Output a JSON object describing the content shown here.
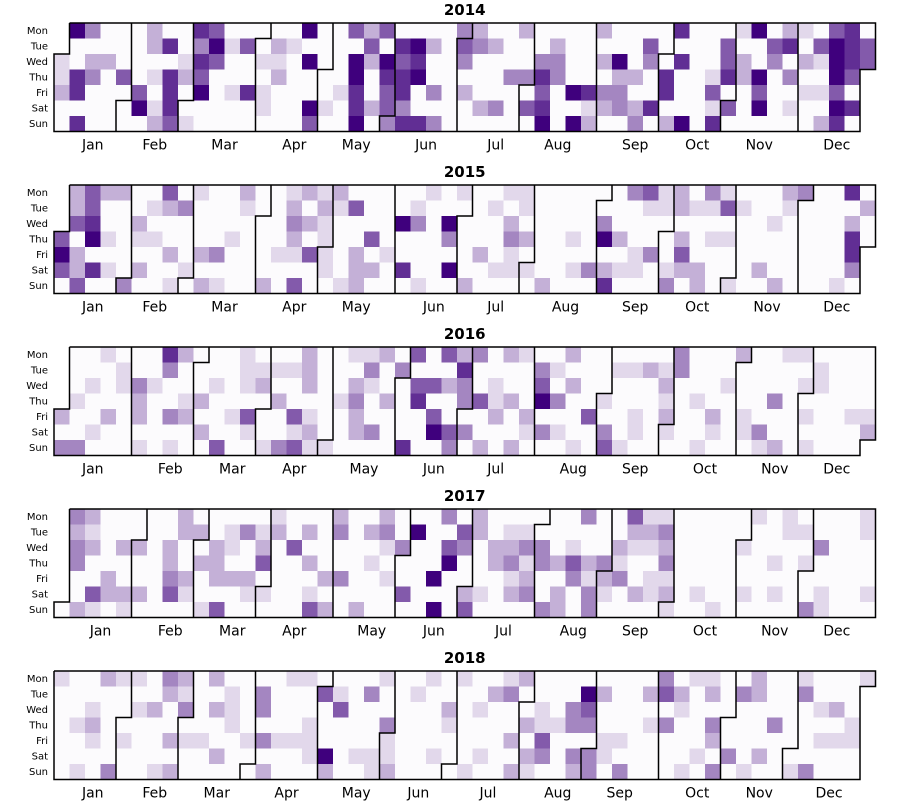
{
  "chart_data": {
    "type": "heatmap",
    "title": "",
    "colormap": {
      "low": "#fcfbfd",
      "high": "#3f007d"
    },
    "day_labels": [
      "Mon",
      "Tue",
      "Wed",
      "Thu",
      "Fri",
      "Sat",
      "Sun"
    ],
    "month_labels": [
      "Jan",
      "Feb",
      "Mar",
      "Apr",
      "May",
      "Jun",
      "Jul",
      "Aug",
      "Sep",
      "Oct",
      "Nov",
      "Dec"
    ],
    "years": [
      {
        "year": "2014",
        "first_weekday": 2,
        "days_in_year": 365
      },
      {
        "year": "2015",
        "first_weekday": 3,
        "days_in_year": 365
      },
      {
        "year": "2016",
        "first_weekday": 4,
        "days_in_year": 366
      },
      {
        "year": "2017",
        "first_weekday": 6,
        "days_in_year": 365
      },
      {
        "year": "2018",
        "first_weekday": 0,
        "days_in_year": 365
      }
    ],
    "value_scale": [
      0,
      6
    ],
    "highlights": {
      "2014": [
        [
          0,
          2
        ],
        [
          1,
          6
        ],
        [
          2,
          5
        ],
        [
          2,
          4
        ],
        [
          3,
          6
        ],
        [
          3,
          1
        ],
        [
          4,
          2
        ],
        [
          4,
          5
        ],
        [
          5,
          3
        ],
        [
          5,
          6
        ],
        [
          6,
          1
        ],
        [
          6,
          2
        ],
        [
          7,
          4
        ],
        [
          7,
          6
        ],
        [
          8,
          2
        ],
        [
          8,
          1
        ],
        [
          9,
          5
        ],
        [
          10,
          6
        ],
        [
          11,
          1
        ],
        [
          12,
          6
        ],
        [
          13,
          1
        ],
        [
          13,
          3
        ],
        [
          14,
          3
        ],
        [
          15,
          2
        ],
        [
          16,
          1
        ],
        [
          16,
          6
        ],
        [
          17,
          2
        ],
        [
          18,
          6
        ],
        [
          18,
          1
        ],
        [
          19,
          6
        ],
        [
          20,
          2
        ],
        [
          21,
          3
        ],
        [
          21,
          5
        ],
        [
          22,
          5
        ],
        [
          23,
          4
        ],
        [
          23,
          6
        ],
        [
          24,
          3
        ],
        [
          25,
          1
        ],
        [
          26,
          6
        ],
        [
          26,
          4
        ],
        [
          27,
          3
        ],
        [
          28,
          2
        ],
        [
          29,
          6
        ],
        [
          29,
          1
        ],
        [
          30,
          2
        ],
        [
          31,
          5
        ],
        [
          32,
          6
        ],
        [
          32,
          4
        ],
        [
          33,
          6
        ],
        [
          34,
          3
        ],
        [
          35,
          2
        ],
        [
          36,
          4
        ],
        [
          37,
          3
        ],
        [
          38,
          5
        ],
        [
          39,
          4
        ],
        [
          40,
          6
        ],
        [
          41,
          1
        ],
        [
          42,
          3
        ],
        [
          43,
          5
        ],
        [
          44,
          2
        ],
        [
          45,
          6
        ],
        [
          46,
          4
        ],
        [
          47,
          3
        ],
        [
          48,
          1
        ],
        [
          49,
          2
        ],
        [
          50,
          5
        ],
        [
          51,
          6
        ],
        [
          52,
          4
        ]
      ],
      "2015": [
        [
          0,
          6
        ],
        [
          0,
          5
        ],
        [
          1,
          6
        ],
        [
          1,
          3
        ],
        [
          2,
          5
        ],
        [
          3,
          1
        ],
        [
          4,
          2
        ],
        [
          5,
          2
        ],
        [
          7,
          2
        ],
        [
          8,
          3
        ],
        [
          9,
          2
        ],
        [
          10,
          1
        ],
        [
          11,
          1
        ],
        [
          13,
          2
        ],
        [
          14,
          1
        ],
        [
          15,
          3
        ],
        [
          16,
          2
        ],
        [
          17,
          2
        ],
        [
          18,
          2
        ],
        [
          19,
          2
        ],
        [
          20,
          3
        ],
        [
          21,
          2
        ],
        [
          22,
          1
        ],
        [
          22,
          5
        ],
        [
          23,
          2
        ],
        [
          24,
          1
        ],
        [
          25,
          4
        ],
        [
          26,
          1
        ],
        [
          28,
          1
        ],
        [
          30,
          1
        ],
        [
          31,
          1
        ],
        [
          32,
          2
        ],
        [
          33,
          1
        ],
        [
          35,
          4
        ],
        [
          36,
          2
        ],
        [
          37,
          3
        ],
        [
          38,
          2
        ],
        [
          39,
          1
        ],
        [
          40,
          2
        ],
        [
          41,
          2
        ],
        [
          42,
          1
        ],
        [
          43,
          2
        ],
        [
          44,
          1
        ],
        [
          45,
          2
        ],
        [
          46,
          1
        ],
        [
          47,
          2
        ],
        [
          48,
          1
        ],
        [
          49,
          5
        ],
        [
          50,
          1
        ],
        [
          51,
          4
        ],
        [
          52,
          3
        ]
      ],
      "2016": [
        [
          0,
          3
        ],
        [
          1,
          2
        ],
        [
          2,
          1
        ],
        [
          3,
          1
        ],
        [
          4,
          2
        ],
        [
          5,
          2
        ],
        [
          6,
          1
        ],
        [
          7,
          3
        ],
        [
          8,
          2
        ],
        [
          9,
          3
        ],
        [
          10,
          2
        ],
        [
          11,
          1
        ],
        [
          12,
          2
        ],
        [
          13,
          2
        ],
        [
          14,
          1
        ],
        [
          15,
          2
        ],
        [
          16,
          2
        ],
        [
          17,
          1
        ],
        [
          18,
          2
        ],
        [
          19,
          2
        ],
        [
          20,
          3
        ],
        [
          21,
          2
        ],
        [
          22,
          5
        ],
        [
          23,
          6
        ],
        [
          24,
          5
        ],
        [
          25,
          4
        ],
        [
          26,
          3
        ],
        [
          27,
          3
        ],
        [
          28,
          2
        ],
        [
          29,
          2
        ],
        [
          30,
          3
        ],
        [
          31,
          4
        ],
        [
          32,
          3
        ],
        [
          33,
          2
        ],
        [
          34,
          2
        ],
        [
          35,
          3
        ],
        [
          36,
          2
        ],
        [
          37,
          2
        ],
        [
          38,
          2
        ],
        [
          39,
          2
        ],
        [
          40,
          1
        ],
        [
          41,
          1
        ],
        [
          42,
          1
        ],
        [
          43,
          1
        ],
        [
          44,
          1
        ],
        [
          45,
          1
        ],
        [
          46,
          1
        ],
        [
          47,
          1
        ],
        [
          48,
          1
        ],
        [
          49,
          1
        ],
        [
          50,
          1
        ],
        [
          51,
          1
        ],
        [
          52,
          1
        ]
      ],
      "2017": [
        [
          0,
          2
        ],
        [
          1,
          3
        ],
        [
          2,
          2
        ],
        [
          3,
          1
        ],
        [
          4,
          2
        ],
        [
          5,
          2
        ],
        [
          6,
          2
        ],
        [
          7,
          4
        ],
        [
          8,
          2
        ],
        [
          9,
          2
        ],
        [
          10,
          2
        ],
        [
          11,
          2
        ],
        [
          12,
          2
        ],
        [
          13,
          2
        ],
        [
          14,
          3
        ],
        [
          15,
          2
        ],
        [
          16,
          2
        ],
        [
          17,
          2
        ],
        [
          18,
          3
        ],
        [
          19,
          2
        ],
        [
          20,
          2
        ],
        [
          21,
          2
        ],
        [
          22,
          4
        ],
        [
          23,
          6
        ],
        [
          24,
          6
        ],
        [
          25,
          5
        ],
        [
          26,
          4
        ],
        [
          27,
          3
        ],
        [
          28,
          2
        ],
        [
          29,
          3
        ],
        [
          30,
          2
        ],
        [
          31,
          3
        ],
        [
          32,
          2
        ],
        [
          33,
          3
        ],
        [
          34,
          3
        ],
        [
          35,
          2
        ],
        [
          36,
          2
        ],
        [
          37,
          2
        ],
        [
          38,
          2
        ],
        [
          39,
          2
        ],
        [
          40,
          1
        ],
        [
          41,
          1
        ],
        [
          42,
          2
        ],
        [
          43,
          1
        ],
        [
          44,
          1
        ],
        [
          45,
          1
        ],
        [
          46,
          1
        ],
        [
          47,
          1
        ],
        [
          48,
          1
        ],
        [
          49,
          1
        ],
        [
          50,
          1
        ],
        [
          51,
          1
        ],
        [
          52,
          1
        ]
      ],
      "2018": [
        [
          0,
          1
        ],
        [
          1,
          1
        ],
        [
          2,
          1
        ],
        [
          3,
          1
        ],
        [
          4,
          1
        ],
        [
          5,
          2
        ],
        [
          6,
          1
        ],
        [
          7,
          2
        ],
        [
          8,
          3
        ],
        [
          9,
          1
        ],
        [
          10,
          2
        ],
        [
          11,
          1
        ],
        [
          12,
          1
        ],
        [
          13,
          3
        ],
        [
          14,
          1
        ],
        [
          15,
          1
        ],
        [
          16,
          1
        ],
        [
          17,
          4
        ],
        [
          18,
          2
        ],
        [
          19,
          2
        ],
        [
          20,
          1
        ],
        [
          21,
          1
        ],
        [
          22,
          1
        ],
        [
          23,
          1
        ],
        [
          24,
          1
        ],
        [
          25,
          1
        ],
        [
          26,
          1
        ],
        [
          27,
          1
        ],
        [
          28,
          1
        ],
        [
          29,
          2
        ],
        [
          30,
          2
        ],
        [
          31,
          2
        ],
        [
          32,
          2
        ],
        [
          33,
          3
        ],
        [
          34,
          4
        ],
        [
          35,
          2
        ],
        [
          36,
          1
        ],
        [
          37,
          1
        ],
        [
          38,
          2
        ],
        [
          39,
          3
        ],
        [
          40,
          2
        ],
        [
          41,
          2
        ],
        [
          42,
          3
        ],
        [
          43,
          2
        ],
        [
          44,
          1
        ],
        [
          45,
          2
        ],
        [
          46,
          1
        ],
        [
          47,
          1
        ],
        [
          48,
          1
        ],
        [
          49,
          1
        ],
        [
          50,
          1
        ],
        [
          51,
          1
        ],
        [
          52,
          1
        ]
      ]
    }
  }
}
